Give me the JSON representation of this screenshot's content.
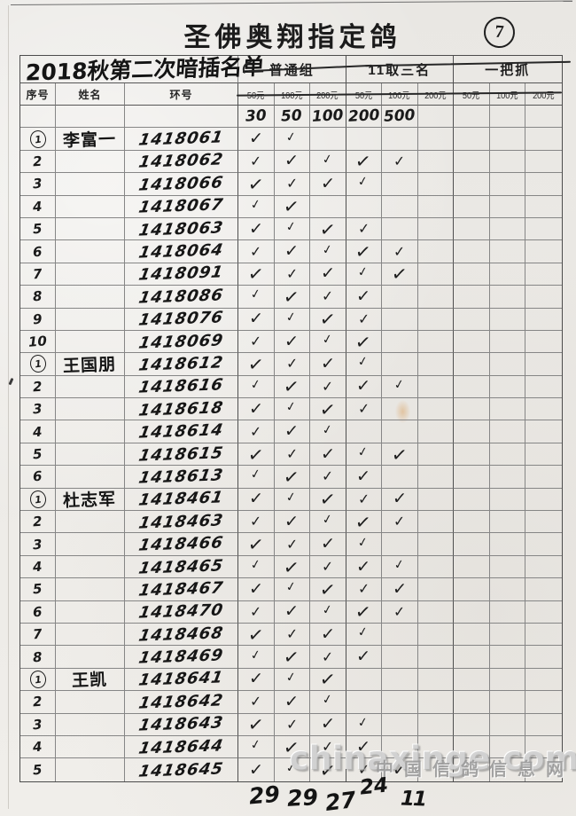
{
  "document": {
    "title": "圣佛奥翔指定鸽",
    "page_number": "7",
    "list_title": "2018秋第二次暗插名单",
    "group_headers": [
      "普通组",
      "11取三名",
      "一把抓"
    ],
    "column_headers": {
      "seq": "序号",
      "name": "姓名",
      "ring": "环号"
    },
    "price_headers": [
      "50元",
      "100元",
      "200元",
      "50元",
      "100元",
      "200元",
      "50元",
      "100元",
      "200元"
    ],
    "bet_amounts": [
      "30",
      "50",
      "100",
      "200",
      "500"
    ],
    "column_totals": [
      "29",
      "29",
      "27",
      "24",
      "11"
    ],
    "check_symbol": "✓",
    "watermark": {
      "site": "chinaxinge.com",
      "site_cn": "中国信鸽信息网"
    },
    "ink_color": "#1e1e1e",
    "paper_color": "#edebe7"
  },
  "rows": [
    {
      "seq": "1",
      "circled": true,
      "name": "李富一",
      "ring": "1418061",
      "checks": [
        1,
        1,
        0,
        0,
        0
      ]
    },
    {
      "seq": "2",
      "ring": "1418062",
      "checks": [
        1,
        1,
        1,
        1,
        1
      ]
    },
    {
      "seq": "3",
      "ring": "1418066",
      "checks": [
        1,
        1,
        1,
        1,
        0
      ]
    },
    {
      "seq": "4",
      "ring": "1418067",
      "checks": [
        1,
        1,
        0,
        0,
        0
      ]
    },
    {
      "seq": "5",
      "ring": "1418063",
      "checks": [
        1,
        1,
        1,
        1,
        0
      ]
    },
    {
      "seq": "6",
      "ring": "1418064",
      "checks": [
        1,
        1,
        1,
        1,
        1
      ]
    },
    {
      "seq": "7",
      "ring": "1418091",
      "checks": [
        1,
        1,
        1,
        1,
        1
      ]
    },
    {
      "seq": "8",
      "ring": "1418086",
      "checks": [
        1,
        1,
        1,
        1,
        0
      ]
    },
    {
      "seq": "9",
      "ring": "1418076",
      "checks": [
        1,
        1,
        1,
        1,
        0
      ]
    },
    {
      "seq": "10",
      "ring": "1418069",
      "checks": [
        1,
        1,
        1,
        1,
        0
      ]
    },
    {
      "seq": "1",
      "circled": true,
      "name": "王国朋",
      "ring": "1418612",
      "checks": [
        1,
        1,
        1,
        1,
        0
      ]
    },
    {
      "seq": "2",
      "ring": "1418616",
      "checks": [
        1,
        1,
        1,
        1,
        1
      ]
    },
    {
      "seq": "3",
      "ring": "1418618",
      "checks": [
        1,
        1,
        1,
        1,
        0
      ]
    },
    {
      "seq": "4",
      "ring": "1418614",
      "checks": [
        1,
        1,
        1,
        0,
        0
      ]
    },
    {
      "seq": "5",
      "ring": "1418615",
      "checks": [
        1,
        1,
        1,
        1,
        1
      ]
    },
    {
      "seq": "6",
      "ring": "1418613",
      "checks": [
        1,
        1,
        1,
        1,
        0
      ]
    },
    {
      "seq": "1",
      "circled": true,
      "name": "杜志军",
      "ring": "1418461",
      "checks": [
        1,
        1,
        1,
        1,
        1
      ]
    },
    {
      "seq": "2",
      "ring": "1418463",
      "checks": [
        1,
        1,
        1,
        1,
        1
      ]
    },
    {
      "seq": "3",
      "ring": "1418466",
      "checks": [
        1,
        1,
        1,
        1,
        0
      ]
    },
    {
      "seq": "4",
      "ring": "1418465",
      "checks": [
        1,
        1,
        1,
        1,
        1
      ]
    },
    {
      "seq": "5",
      "ring": "1418467",
      "checks": [
        1,
        1,
        1,
        1,
        1
      ]
    },
    {
      "seq": "6",
      "ring": "1418470",
      "checks": [
        1,
        1,
        1,
        1,
        1
      ]
    },
    {
      "seq": "7",
      "ring": "1418468",
      "checks": [
        1,
        1,
        1,
        1,
        0
      ]
    },
    {
      "seq": "8",
      "ring": "1418469",
      "checks": [
        1,
        1,
        1,
        1,
        0
      ]
    },
    {
      "seq": "1",
      "circled": true,
      "name": "王凯",
      "ring": "1418641",
      "checks": [
        1,
        1,
        1,
        0,
        0
      ]
    },
    {
      "seq": "2",
      "ring": "1418642",
      "checks": [
        1,
        1,
        1,
        0,
        0
      ]
    },
    {
      "seq": "3",
      "ring": "1418643",
      "checks": [
        1,
        1,
        1,
        1,
        0
      ]
    },
    {
      "seq": "4",
      "ring": "1418644",
      "checks": [
        1,
        1,
        1,
        1,
        0
      ]
    },
    {
      "seq": "5",
      "ring": "1418645",
      "checks": [
        1,
        1,
        1,
        1,
        1
      ]
    }
  ]
}
